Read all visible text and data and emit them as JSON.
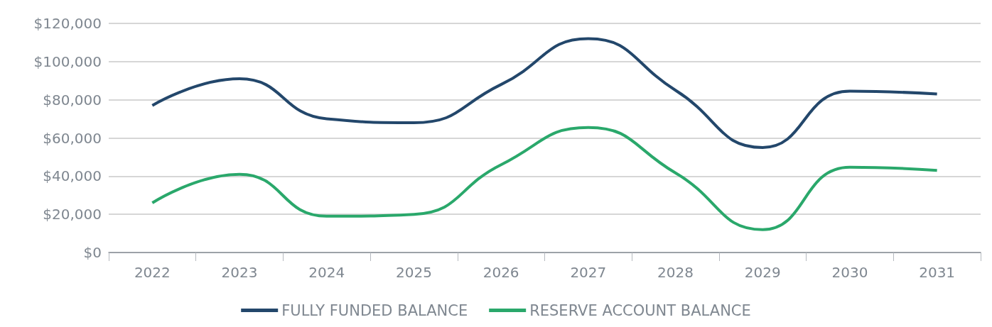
{
  "chart_data": {
    "type": "line",
    "categories": [
      "2022",
      "2023",
      "2024",
      "2025",
      "2026",
      "2027",
      "2028",
      "2029",
      "2030",
      "2031"
    ],
    "series": [
      {
        "name": "FULLY FUNDED BALANCE",
        "color": "#23476b",
        "values": [
          77000,
          91000,
          70000,
          68000,
          88000,
          112000,
          85000,
          55000,
          84500,
          83000
        ]
      },
      {
        "name": "RESERVE ACCOUNT BALANCE",
        "color": "#2aa86b",
        "values": [
          26000,
          41000,
          19000,
          20000,
          46000,
          65500,
          41700,
          12000,
          44700,
          43000
        ]
      }
    ],
    "ylim": [
      0,
      120000
    ],
    "yticks": [
      {
        "value": 0,
        "label": "$0"
      },
      {
        "value": 20000,
        "label": "$20,000"
      },
      {
        "value": 40000,
        "label": "$40,000"
      },
      {
        "value": 60000,
        "label": "$60,000"
      },
      {
        "value": 80000,
        "label": "$80,000"
      },
      {
        "value": 100000,
        "label": "$100,000"
      },
      {
        "value": 120000,
        "label": "$120,000"
      }
    ],
    "grid": "y",
    "legend": "bottom",
    "marker": "none",
    "line_style": "solid"
  }
}
